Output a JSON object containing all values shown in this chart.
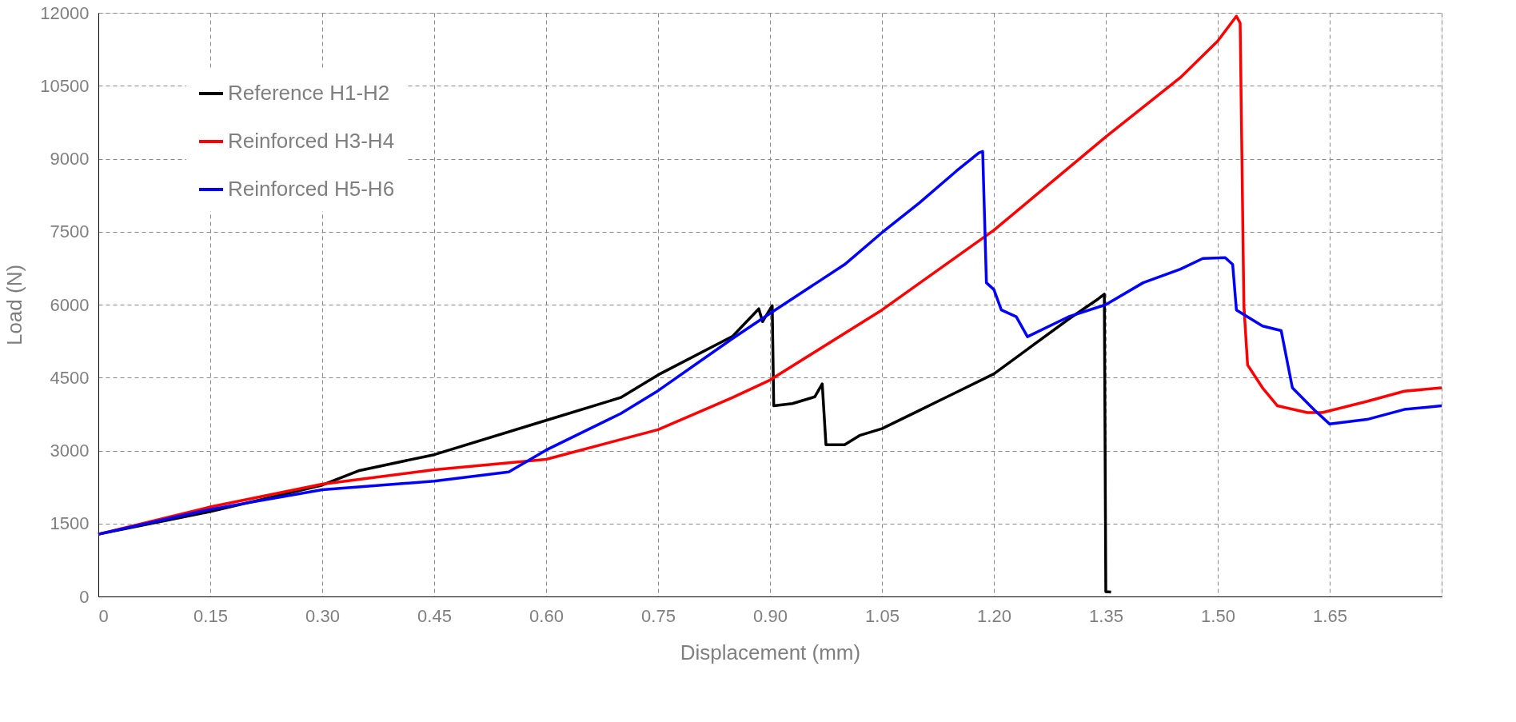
{
  "chart_data": {
    "type": "line",
    "xlabel": "Displacement (mm)",
    "ylabel": "Load (N)",
    "xlim": [
      0,
      1.8
    ],
    "ylim": [
      0,
      12000
    ],
    "xticks": [
      0,
      {
        "value": 0.15,
        "label": "0.15"
      },
      {
        "value": 0.3,
        "label": "0.30"
      },
      {
        "value": 0.45,
        "label": "0.45"
      },
      {
        "value": 0.6,
        "label": "0.60"
      },
      {
        "value": 0.75,
        "label": "0.75"
      },
      {
        "value": 0.9,
        "label": "0.90"
      },
      {
        "value": 1.05,
        "label": "1.05"
      },
      {
        "value": 1.2,
        "label": "1.20"
      },
      {
        "value": 1.35,
        "label": "1.35"
      },
      {
        "value": 1.5,
        "label": "1.50"
      },
      {
        "value": 1.65,
        "label": "1.65"
      },
      {
        "value": 1.8,
        "label": null
      }
    ],
    "yticks": [
      0,
      1500,
      3000,
      4500,
      6000,
      7500,
      9000,
      10500,
      12000
    ],
    "grid": true,
    "legend": "top left",
    "marker": "none",
    "line_style": "solid",
    "series": [
      {
        "name": "Reference H1-H2",
        "color": "#000000",
        "x": [
          0,
          0.15,
          0.3,
          0.35,
          0.45,
          0.6,
          0.7,
          0.75,
          0.85,
          0.885,
          0.89,
          0.903,
          0.905,
          0.93,
          0.96,
          0.97,
          0.975,
          1.0,
          1.02,
          1.05,
          1.1,
          1.15,
          1.2,
          1.25,
          1.3,
          1.34,
          1.348,
          1.35,
          1.357
        ],
        "values": [
          1280,
          1745,
          2290,
          2590,
          2915,
          3620,
          4090,
          4555,
          5350,
          5915,
          5650,
          5980,
          3920,
          3965,
          4105,
          4370,
          3120,
          3120,
          3310,
          3450,
          3825,
          4200,
          4575,
          5140,
          5700,
          6120,
          6215,
          100,
          90
        ]
      },
      {
        "name": "Reinforced H3-H4",
        "color": "#ff0000",
        "x": [
          0,
          0.15,
          0.3,
          0.45,
          0.6,
          0.75,
          0.85,
          0.9,
          1.05,
          1.2,
          1.35,
          1.45,
          1.5,
          1.525,
          1.53,
          1.535,
          1.54,
          1.56,
          1.58,
          1.62,
          1.64,
          1.7,
          1.75,
          1.8
        ],
        "values": [
          1280,
          1840,
          2310,
          2605,
          2820,
          3430,
          4090,
          4450,
          5890,
          7530,
          9450,
          10670,
          11420,
          11930,
          11790,
          5980,
          4760,
          4290,
          3920,
          3780,
          3780,
          4010,
          4220,
          4290
        ]
      },
      {
        "name": "Reinforced H5-H6",
        "color": "#0000ff",
        "x": [
          0,
          0.15,
          0.3,
          0.45,
          0.55,
          0.6,
          0.7,
          0.75,
          0.85,
          0.9,
          1.0,
          1.05,
          1.1,
          1.15,
          1.18,
          1.185,
          1.19,
          1.2,
          1.21,
          1.23,
          1.245,
          1.3,
          1.35,
          1.4,
          1.45,
          1.48,
          1.51,
          1.52,
          1.525,
          1.56,
          1.585,
          1.6,
          1.63,
          1.65,
          1.7,
          1.75,
          1.8
        ],
        "values": [
          1280,
          1790,
          2195,
          2370,
          2560,
          3010,
          3760,
          4230,
          5305,
          5820,
          6825,
          7480,
          8090,
          8750,
          9120,
          9150,
          6450,
          6310,
          5890,
          5750,
          5340,
          5750,
          6000,
          6450,
          6730,
          6950,
          6965,
          6825,
          5890,
          5560,
          5465,
          4290,
          3825,
          3545,
          3640,
          3845,
          3920
        ]
      }
    ]
  }
}
